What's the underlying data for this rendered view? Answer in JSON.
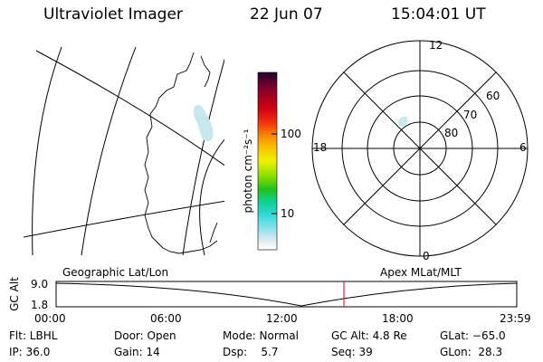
{
  "header": {
    "instrument": "Ultraviolet Imager",
    "date": "22 Jun 07",
    "time": "15:04:01 UT"
  },
  "colorbar": {
    "unit_label": "photon cm⁻²s⁻¹",
    "ticks": [
      "100",
      "10"
    ]
  },
  "polar_plot": {
    "mlt_labels": {
      "top": "12",
      "left": "18",
      "right": "6",
      "bottom": "0"
    },
    "lat_labels": [
      "60",
      "70",
      "80"
    ]
  },
  "timeline": {
    "left_label": "Geographic Lat/Lon",
    "right_label": "Apex MLat/MLT",
    "axis_title": "GC Alt",
    "y_ticks": [
      "9.0",
      "1.8"
    ],
    "x_ticks": [
      "00:00",
      "06:00",
      "12:00",
      "18:00",
      "23:59"
    ],
    "marker_color": "#e8262a"
  },
  "status": {
    "flt": "Flt: LBHL",
    "ip": "IP: 36.0",
    "door": "Door: Open",
    "gain": "Gain: 14",
    "mode": "Mode: Normal",
    "dsp": "Dsp:    5.7",
    "gc_alt": "GC Alt: 4.8 Re",
    "seq": "Seq: 39",
    "glat": "GLat: −65.0",
    "glon": "GLon:  28.3"
  }
}
